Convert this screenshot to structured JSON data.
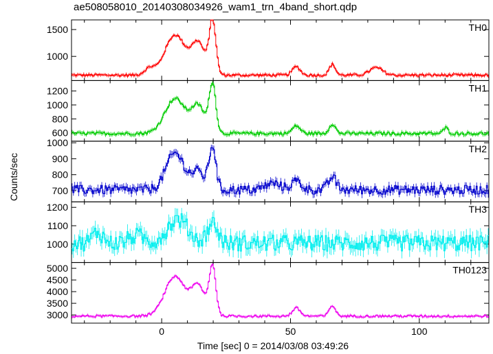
{
  "title": "ae508058010_20140308034926_wam1_trn_4band_short.qdp",
  "chart_data": {
    "type": "line",
    "style": "step with error bars",
    "ylabel": "Counts/sec",
    "xlabel": "Time [sec] 0 = 2014/03/08 03:49:26",
    "xlim": [
      -35,
      127
    ],
    "xticks": [
      0,
      50,
      100
    ],
    "grid": false,
    "panels": [
      {
        "name": "TH0",
        "color": "#ff0000",
        "ylim": [
          550,
          1680
        ],
        "yticks": [
          1000,
          1500
        ],
        "base": 650,
        "noise": 15,
        "errbar": 30,
        "features": [
          {
            "t": 5,
            "a": 750,
            "w": 4
          },
          {
            "t": 14,
            "a": 580,
            "w": 2.6
          },
          {
            "t": 19.5,
            "a": 1000,
            "w": 1.3
          },
          {
            "t": -5,
            "a": 120,
            "w": 2
          },
          {
            "t": 52,
            "a": 160,
            "w": 1.5
          },
          {
            "t": 66,
            "a": 200,
            "w": 1.2
          },
          {
            "t": 83,
            "a": 140,
            "w": 2.5
          }
        ]
      },
      {
        "name": "TH1",
        "color": "#00cc00",
        "ylim": [
          480,
          1350
        ],
        "yticks": [
          600,
          800,
          1000,
          1200
        ],
        "base": 590,
        "noise": 14,
        "errbar": 28,
        "features": [
          {
            "t": 5,
            "a": 500,
            "w": 4
          },
          {
            "t": 14,
            "a": 380,
            "w": 2.6
          },
          {
            "t": 19.5,
            "a": 700,
            "w": 1.3
          },
          {
            "t": 52,
            "a": 110,
            "w": 1.5
          },
          {
            "t": 66,
            "a": 140,
            "w": 1.2
          },
          {
            "t": 110,
            "a": 80,
            "w": 1
          }
        ]
      },
      {
        "name": "TH2",
        "color": "#0000cc",
        "ylim": [
          630,
          1010
        ],
        "yticks": [
          700,
          800,
          900,
          1000
        ],
        "base": 705,
        "noise": 18,
        "errbar": 22,
        "features": [
          {
            "t": 5,
            "a": 230,
            "w": 3.5
          },
          {
            "t": 14,
            "a": 110,
            "w": 2.6
          },
          {
            "t": 19.5,
            "a": 270,
            "w": 1.3
          },
          {
            "t": 43,
            "a": 40,
            "w": 3
          },
          {
            "t": 52,
            "a": 55,
            "w": 2
          },
          {
            "t": 66,
            "a": 80,
            "w": 1.5
          }
        ]
      },
      {
        "name": "TH3",
        "color": "#00eeee",
        "ylim": [
          900,
          1230
        ],
        "yticks": [
          1000,
          1100,
          1200
        ],
        "base": 1005,
        "noise": 28,
        "errbar": 35,
        "features": [
          {
            "t": 6,
            "a": 130,
            "w": 4
          },
          {
            "t": 19.5,
            "a": 110,
            "w": 2
          },
          {
            "t": -25,
            "a": 60,
            "w": 2
          },
          {
            "t": -10,
            "a": 40,
            "w": 3
          }
        ]
      },
      {
        "name": "TH0123",
        "color": "#ee00ee",
        "ylim": [
          2650,
          5250
        ],
        "yticks": [
          3000,
          3500,
          4000,
          4500,
          5000
        ],
        "base": 2950,
        "noise": 30,
        "errbar": 55,
        "features": [
          {
            "t": 5,
            "a": 1700,
            "w": 4
          },
          {
            "t": 14,
            "a": 1250,
            "w": 2.6
          },
          {
            "t": 19.5,
            "a": 2100,
            "w": 1.3
          },
          {
            "t": 52,
            "a": 350,
            "w": 1.5
          },
          {
            "t": 66,
            "a": 450,
            "w": 1.2
          }
        ]
      }
    ]
  }
}
